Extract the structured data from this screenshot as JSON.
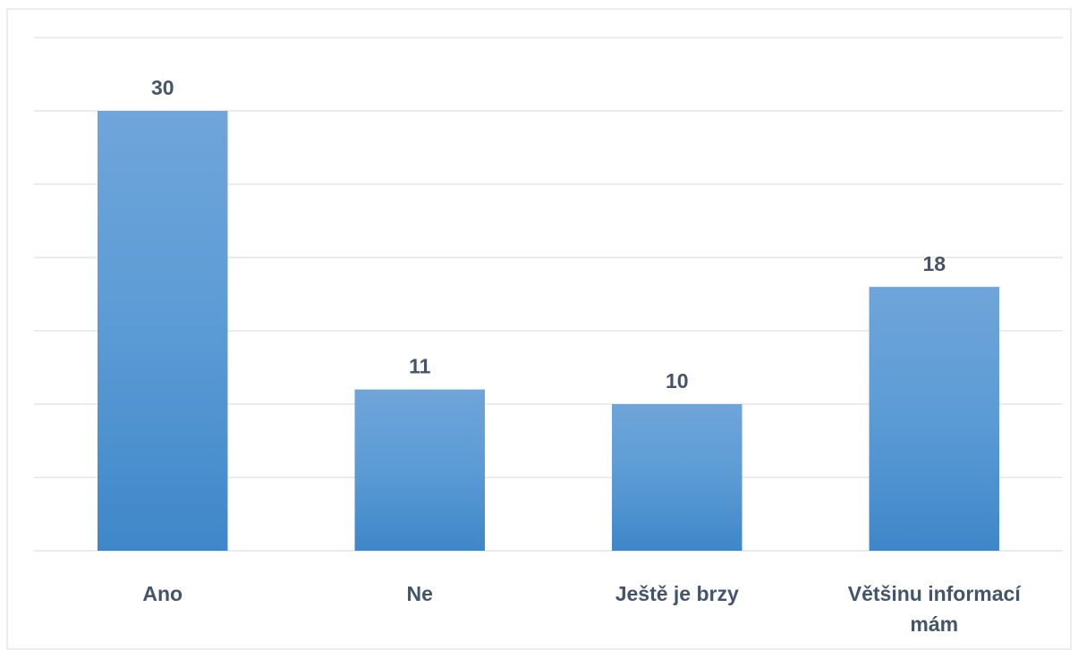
{
  "chart_data": {
    "type": "bar",
    "categories": [
      "Ano",
      "Ne",
      "Ještě je brzy",
      "Většinu informací mám"
    ],
    "values": [
      30,
      11,
      10,
      18
    ],
    "color": "#5b9bd5",
    "ylim": [
      0,
      35
    ],
    "yticks": [
      0,
      5,
      10,
      15,
      20,
      25,
      30,
      35
    ],
    "grid": true
  }
}
